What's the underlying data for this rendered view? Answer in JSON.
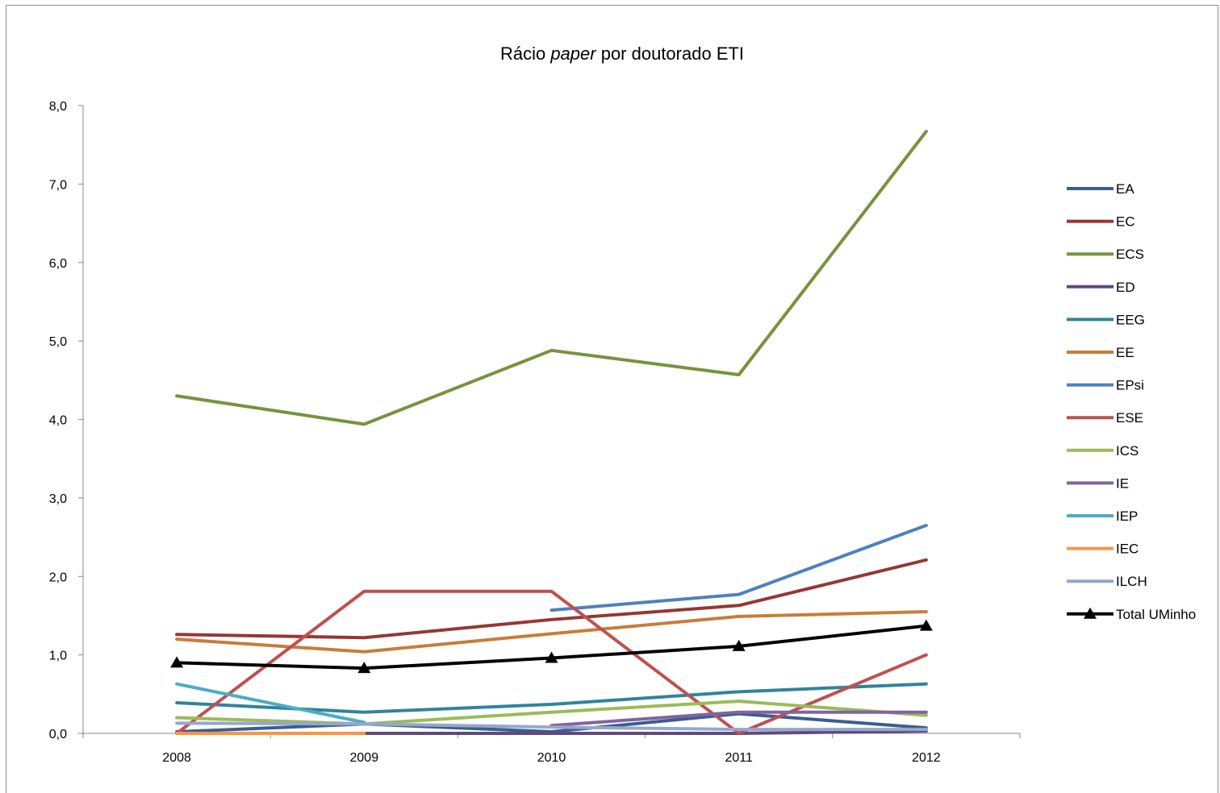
{
  "chart_data": {
    "type": "line",
    "title": {
      "part1": "Rácio ",
      "italic": "paper",
      "part2": " por doutorado ETI"
    },
    "xlabel": "",
    "ylabel": "",
    "categories": [
      "2008",
      "2009",
      "2010",
      "2011",
      "2012"
    ],
    "ylim": [
      0,
      8
    ],
    "yticks": [
      0,
      1,
      2,
      3,
      4,
      5,
      6,
      7,
      8
    ],
    "ytick_labels": [
      "0,0",
      "1,0",
      "2,0",
      "3,0",
      "4,0",
      "5,0",
      "6,0",
      "7,0",
      "8,0"
    ],
    "grid": false,
    "legend_position": "right",
    "series": [
      {
        "name": "EA",
        "color": "#3a5f8c",
        "values": [
          0.02,
          0.12,
          0.02,
          0.25,
          0.07
        ]
      },
      {
        "name": "EC",
        "color": "#953735",
        "values": [
          1.26,
          1.22,
          1.45,
          1.63,
          2.21
        ]
      },
      {
        "name": "ECS",
        "color": "#77933c",
        "values": [
          4.3,
          3.94,
          4.88,
          4.57,
          7.67
        ]
      },
      {
        "name": "ED",
        "color": "#604a7b",
        "values": [
          0.0,
          0.0,
          0.0,
          0.0,
          0.03
        ]
      },
      {
        "name": "EEG",
        "color": "#31849b",
        "values": [
          0.39,
          0.27,
          0.37,
          0.53,
          0.63
        ]
      },
      {
        "name": "EE",
        "color": "#e46c0a",
        "values": [
          1.2,
          1.04,
          1.27,
          1.49,
          1.55
        ],
        "stroke": "#c77d3a"
      },
      {
        "name": "EPsi",
        "color": "#4f81bd",
        "values": [
          null,
          null,
          1.57,
          1.77,
          2.65
        ]
      },
      {
        "name": "ESE",
        "color": "#c0504d",
        "values": [
          0.0,
          1.81,
          1.81,
          0.0,
          1.0
        ]
      },
      {
        "name": "ICS",
        "color": "#9bbb59",
        "values": [
          0.2,
          0.12,
          0.27,
          0.41,
          0.23
        ]
      },
      {
        "name": "IE",
        "color": "#8064a2",
        "values": [
          null,
          null,
          0.1,
          0.27,
          0.27
        ]
      },
      {
        "name": "IEP",
        "color": "#4bacc6",
        "values": [
          0.63,
          0.14,
          null,
          null,
          null
        ]
      },
      {
        "name": "IEC",
        "color": "#f79646",
        "values": [
          0.0,
          0.0,
          null,
          null,
          null
        ]
      },
      {
        "name": "ILCH",
        "color": "#95a7cf",
        "values": [
          0.13,
          0.12,
          0.08,
          0.05,
          0.05
        ]
      },
      {
        "name": "Total UMinho",
        "color": "#000000",
        "marker": "triangle",
        "values": [
          0.9,
          0.83,
          0.96,
          1.11,
          1.37
        ]
      }
    ]
  }
}
